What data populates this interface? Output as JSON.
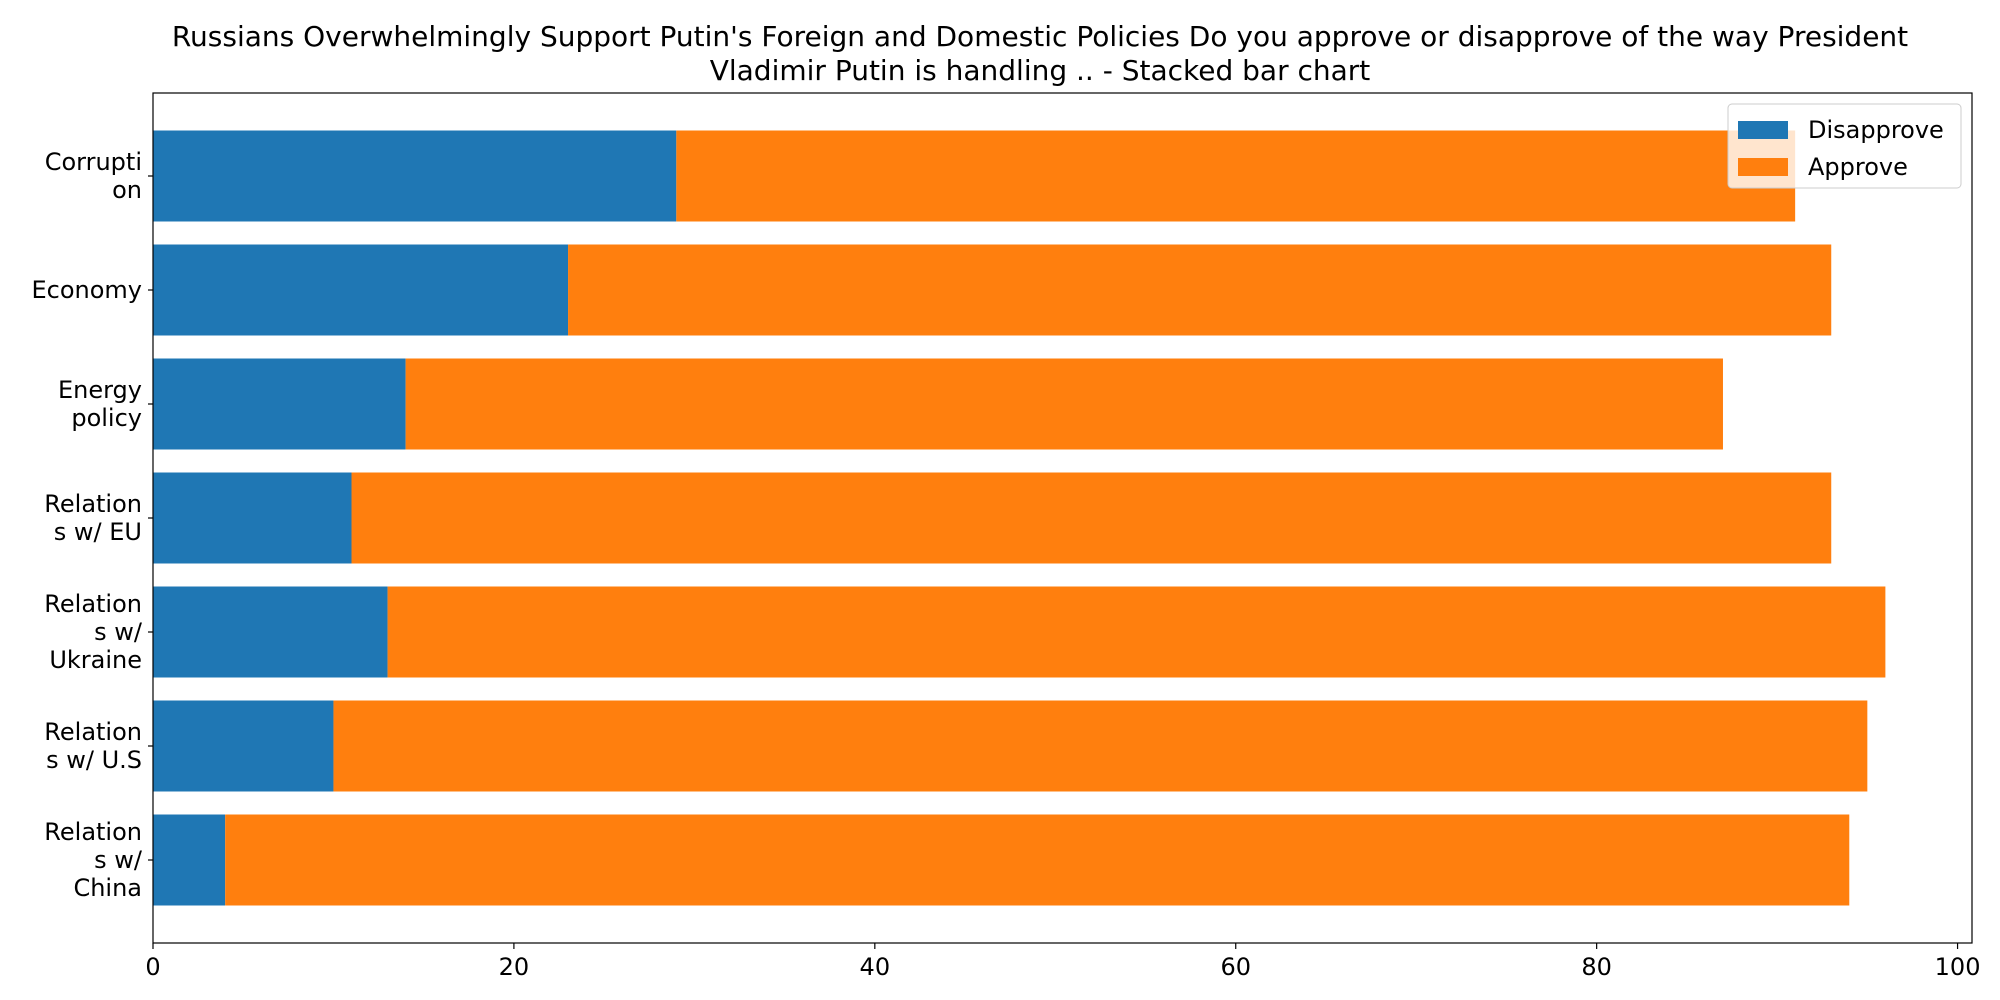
{
  "chart_data": {
    "type": "bar",
    "orientation": "horizontal",
    "stacked": true,
    "title": "Russians Overwhelmingly Support Putin's Foreign and Domestic Policies Do you approve or disapprove of the way President Vladimir Putin is handling ..  - Stacked bar chart",
    "title_lines": [
      "Russians Overwhelmingly Support Putin's Foreign and Domestic Policies Do you approve or disapprove of the way President",
      "Vladimir Putin is handling ..  - Stacked bar chart"
    ],
    "categories": [
      "Corruption",
      "Economy",
      "Energy policy",
      "Relations w/ EU",
      "Relations w/ Ukraine",
      "Relations w/ U.S",
      "Relations w/ China"
    ],
    "category_labels": [
      [
        "Corrupti",
        "on"
      ],
      [
        "Economy"
      ],
      [
        "Energy",
        "policy"
      ],
      [
        "Relation",
        "s w/ EU"
      ],
      [
        "Relation",
        "s w/",
        "Ukraine"
      ],
      [
        "Relation",
        "s w/ U.S"
      ],
      [
        "Relation",
        "s w/",
        "China"
      ]
    ],
    "series": [
      {
        "name": "Disapprove",
        "color": "#1f77b4",
        "values": [
          29,
          23,
          14,
          11,
          13,
          10,
          4
        ]
      },
      {
        "name": "Approve",
        "color": "#ff7f0e",
        "values": [
          62,
          70,
          73,
          82,
          83,
          85,
          90
        ]
      }
    ],
    "xlabel": "",
    "ylabel": "",
    "xlim": [
      0,
      100.8
    ],
    "xticks": [
      0,
      20,
      40,
      60,
      80,
      100
    ],
    "grid": false,
    "legend_position": "top-right"
  }
}
